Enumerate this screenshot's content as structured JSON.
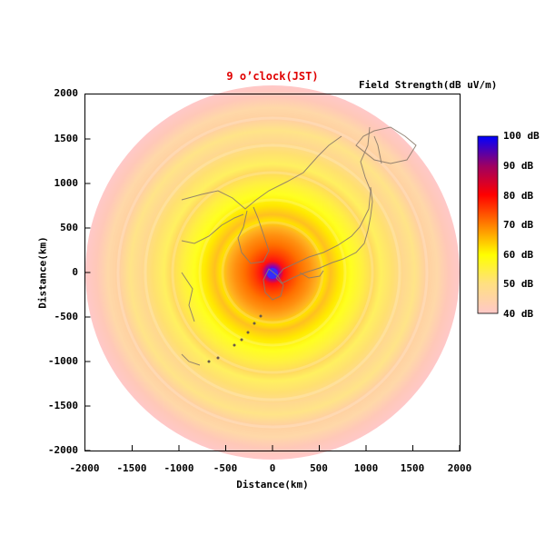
{
  "title": "9 o’clock(JST)",
  "colorbar": {
    "label": "Field Strength(dB uV/m)",
    "tick_labels": [
      "100 dB",
      "90 dB",
      "80 dB",
      "70 dB",
      "60 dB",
      "50 dB",
      "40 dB"
    ],
    "tick_values": [
      100,
      90,
      80,
      70,
      60,
      50,
      40
    ],
    "range": [
      40,
      100
    ],
    "colors": [
      "#ffc8c8",
      "#ffff00",
      "#ff8000",
      "#ff0000",
      "#0000ff"
    ]
  },
  "axes": {
    "xlabel": "Distance(km)",
    "ylabel": "Distance(km)",
    "xlim": [
      -2000,
      2000
    ],
    "ylim": [
      -2000,
      2000
    ],
    "xticks": [
      "-2000",
      "-1500",
      "-1000",
      "-500",
      "0",
      "500",
      "1000",
      "1500",
      "2000"
    ],
    "yticks": [
      "2000",
      "1500",
      "1000",
      "500",
      "0",
      "-500",
      "-1000",
      "-1500",
      "-2000"
    ]
  },
  "map": {
    "type": "radial field strength",
    "max_range_km": 2000,
    "center_km": [
      0,
      0
    ],
    "basemap": "Japan and surrounding coastlines"
  }
}
